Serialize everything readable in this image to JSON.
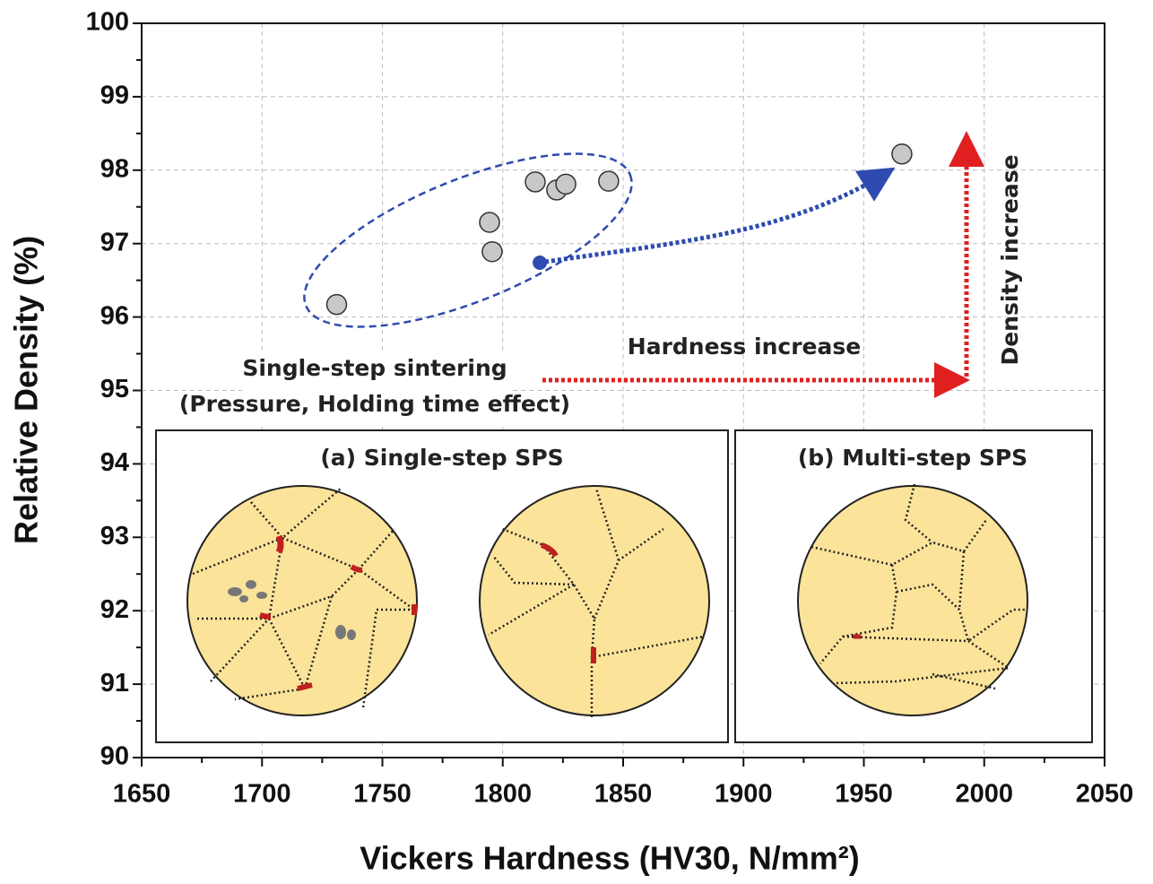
{
  "chart_data": {
    "type": "scatter",
    "x_label": "Vickers Hardness (HV30, N/mm²)",
    "y_label": "Relative Density (%)",
    "xlim": [
      1650,
      2050
    ],
    "ylim": [
      90,
      100
    ],
    "xticks": [
      1650,
      1700,
      1750,
      1800,
      1850,
      1900,
      1950,
      2000,
      2050
    ],
    "yticks": [
      90,
      91,
      92,
      93,
      94,
      95,
      96,
      97,
      98,
      99,
      100
    ],
    "grid": true,
    "x": [
      1731,
      1794.5,
      1795.6,
      1813.5,
      1822.4,
      1826.2,
      1844,
      1965.8
    ],
    "values": [
      96.17,
      97.29,
      96.89,
      97.84,
      97.73,
      97.81,
      97.85,
      98.22
    ],
    "color": "#c8c8c8",
    "highlight": {
      "x": 1815.4,
      "y": 96.74,
      "color": "#2e4bb0"
    },
    "annotations": [
      "Single-step sintering",
      "(Pressure, Holding time effect)",
      "Hardness increase",
      "Density increase",
      "(a) Single-step SPS",
      "(b) Multi-step SPS"
    ]
  }
}
